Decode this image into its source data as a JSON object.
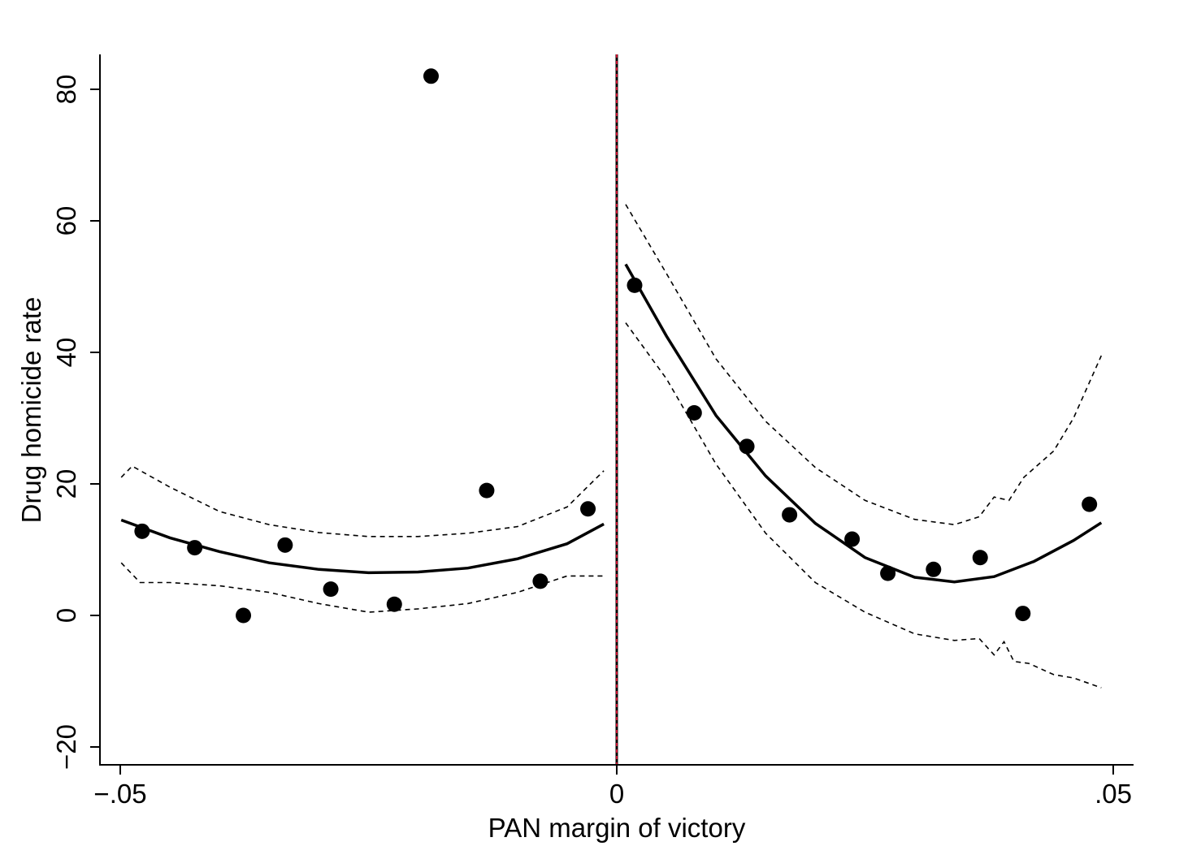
{
  "chart_data": {
    "type": "scatter",
    "xlabel": "PAN margin of victory",
    "ylabel": "Drug homicide rate",
    "xlim": [
      -0.052,
      0.051
    ],
    "ylim": [
      -23,
      85
    ],
    "x_ticks": [
      {
        "value": -0.05,
        "label": "−.05"
      },
      {
        "value": 0,
        "label": "0"
      },
      {
        "value": 0.05,
        "label": ".05"
      }
    ],
    "y_ticks": [
      {
        "value": -20,
        "label": "−20"
      },
      {
        "value": 0,
        "label": "0"
      },
      {
        "value": 20,
        "label": "20"
      },
      {
        "value": 40,
        "label": "40"
      },
      {
        "value": 60,
        "label": "60"
      },
      {
        "value": 80,
        "label": "80"
      }
    ],
    "cutoff": {
      "x": 0,
      "colors": [
        "#000000",
        "#c8102e"
      ]
    },
    "points": [
      {
        "x": -0.0478,
        "y": 12.8
      },
      {
        "x": -0.0425,
        "y": 10.3
      },
      {
        "x": -0.0376,
        "y": 0.0
      },
      {
        "x": -0.0334,
        "y": 10.7
      },
      {
        "x": -0.0288,
        "y": 4.0
      },
      {
        "x": -0.0224,
        "y": 1.7
      },
      {
        "x": -0.0187,
        "y": 82.0
      },
      {
        "x": -0.0131,
        "y": 19.0
      },
      {
        "x": -0.0077,
        "y": 5.2
      },
      {
        "x": -0.0029,
        "y": 16.2
      },
      {
        "x": 0.0018,
        "y": 50.2
      },
      {
        "x": 0.0078,
        "y": 30.8
      },
      {
        "x": 0.0131,
        "y": 25.7
      },
      {
        "x": 0.0174,
        "y": 15.3
      },
      {
        "x": 0.0237,
        "y": 11.6
      },
      {
        "x": 0.0273,
        "y": 6.4
      },
      {
        "x": 0.0319,
        "y": 7.0
      },
      {
        "x": 0.0366,
        "y": 8.8
      },
      {
        "x": 0.0409,
        "y": 0.3
      },
      {
        "x": 0.0476,
        "y": 16.9
      }
    ],
    "fit_left": {
      "x": [
        -0.0499,
        -0.045,
        -0.04,
        -0.035,
        -0.03,
        -0.025,
        -0.02,
        -0.015,
        -0.01,
        -0.005,
        -0.0013
      ],
      "y": [
        14.5,
        11.8,
        9.7,
        8.0,
        7.0,
        6.5,
        6.6,
        7.2,
        8.6,
        10.9,
        13.9
      ]
    },
    "fit_right": {
      "x": [
        0.0009,
        0.005,
        0.01,
        0.015,
        0.02,
        0.025,
        0.03,
        0.034,
        0.038,
        0.042,
        0.046,
        0.0488
      ],
      "y": [
        53.4,
        42.5,
        30.4,
        21.2,
        14.0,
        8.8,
        5.8,
        5.1,
        5.9,
        8.2,
        11.4,
        14.1
      ]
    },
    "ci_left_upper": {
      "x": [
        -0.0499,
        -0.0488,
        -0.045,
        -0.04,
        -0.035,
        -0.03,
        -0.025,
        -0.02,
        -0.015,
        -0.01,
        -0.005,
        -0.0013
      ],
      "y": [
        21.0,
        22.7,
        19.5,
        15.8,
        13.8,
        12.6,
        12.0,
        12.0,
        12.5,
        13.5,
        16.5,
        22.0
      ]
    },
    "ci_left_lower": {
      "x": [
        -0.0499,
        -0.048,
        -0.045,
        -0.04,
        -0.035,
        -0.03,
        -0.025,
        -0.02,
        -0.015,
        -0.01,
        -0.005,
        -0.0013
      ],
      "y": [
        8.0,
        5.0,
        5.0,
        4.5,
        3.5,
        1.8,
        0.5,
        1.0,
        1.8,
        3.5,
        6.0,
        6.0
      ]
    },
    "ci_right_upper": {
      "x": [
        0.0009,
        0.005,
        0.01,
        0.015,
        0.02,
        0.025,
        0.03,
        0.034,
        0.0365,
        0.038,
        0.0395,
        0.041,
        0.044,
        0.046,
        0.0488
      ],
      "y": [
        62.5,
        52.0,
        39.0,
        29.5,
        22.5,
        17.5,
        14.6,
        13.8,
        15.0,
        18.0,
        17.5,
        21.0,
        25.0,
        30.0,
        39.5
      ]
    },
    "ci_right_lower": {
      "x": [
        0.0009,
        0.005,
        0.01,
        0.015,
        0.02,
        0.025,
        0.03,
        0.034,
        0.0365,
        0.038,
        0.039,
        0.04,
        0.0415,
        0.044,
        0.046,
        0.0488
      ],
      "y": [
        44.5,
        36.0,
        23.0,
        12.5,
        5.0,
        0.5,
        -2.8,
        -3.8,
        -3.5,
        -6.0,
        -4.0,
        -7.0,
        -7.3,
        -9.0,
        -9.5,
        -11.0
      ]
    }
  }
}
